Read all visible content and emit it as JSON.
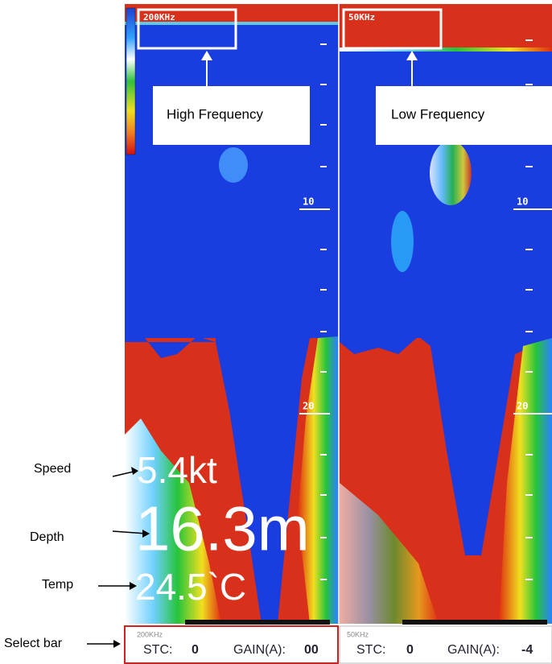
{
  "panels": [
    {
      "frequency": "200KHz",
      "callout": "High Frequency",
      "scale": [
        "10",
        "20"
      ],
      "select_bar": {
        "frequency": "200KHz",
        "stc_label": "STC:",
        "stc": "0",
        "gain_label": "GAIN(A):",
        "gain": "00"
      }
    },
    {
      "frequency": "50KHz",
      "callout": "Low Frequency",
      "scale": [
        "10",
        "20"
      ],
      "select_bar": {
        "frequency": "50KHz",
        "stc_label": "STC:",
        "stc": "0",
        "gain_label": "GAIN(A):",
        "gain": "-4"
      }
    }
  ],
  "readings": {
    "speed": "5.4kt",
    "depth": "16.3m",
    "temp": "24.5`C"
  },
  "side_labels": {
    "speed": "Speed",
    "depth": "Depth",
    "temp": "Temp",
    "select_bar": "Select bar"
  }
}
